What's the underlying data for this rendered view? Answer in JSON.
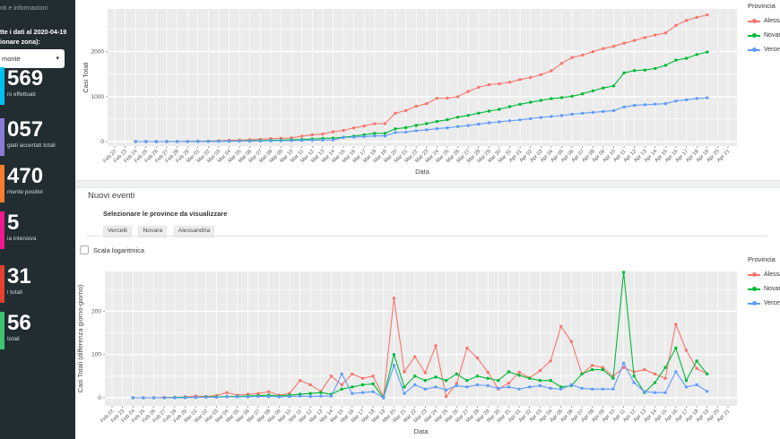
{
  "sidebar": {
    "info_link": "nti e informazioni",
    "data_note": "tte i dati al 2020-04-19",
    "zone_label": "ionare zona):",
    "zone_select_value": "monte",
    "stats": [
      {
        "value": "569",
        "label": "ni effettuati",
        "color": "#00c0ef"
      },
      {
        "value": "057",
        "label": "giati accertati totali",
        "color": "#8a7bd8"
      },
      {
        "value": "470",
        "label": "mente positivi",
        "color": "#ff7e2e"
      },
      {
        "value": "5",
        "label": "ia intensiva",
        "color": "#ef188f"
      },
      {
        "value": "31",
        "label": "i totali",
        "color": "#e8402f"
      },
      {
        "value": "56",
        "label": "totali",
        "color": "#3fc46f"
      }
    ]
  },
  "sections": {
    "nuovi_eventi_title": "Nuovi eventi",
    "province_select_label": "Selezionare le province da visualizzare",
    "province_chips": [
      "Vercelli",
      "Novara",
      "Alessandria"
    ],
    "log_scale_label": "Scala logaritmica"
  },
  "chart_data": [
    {
      "type": "line",
      "title": "",
      "xlabel": "Data",
      "ylabel": "Casi Totali",
      "legend_title": "Provincia",
      "legend_position": "right",
      "grid": true,
      "yticks": [
        0,
        1000,
        2000
      ],
      "ylim": [
        -100,
        2945
      ],
      "x": [
        "Feb 22",
        "Feb 23",
        "Feb 24",
        "Feb 25",
        "Feb 26",
        "Feb 27",
        "Feb 28",
        "Feb 29",
        "Mar 01",
        "Mar 02",
        "Mar 03",
        "Mar 04",
        "Mar 05",
        "Mar 06",
        "Mar 07",
        "Mar 08",
        "Mar 09",
        "Mar 10",
        "Mar 11",
        "Mar 12",
        "Mar 13",
        "Mar 14",
        "Mar 15",
        "Mar 16",
        "Mar 17",
        "Mar 18",
        "Mar 19",
        "Mar 20",
        "Mar 21",
        "Mar 22",
        "Mar 23",
        "Mar 24",
        "Mar 25",
        "Mar 26",
        "Mar 27",
        "Mar 28",
        "Mar 29",
        "Mar 30",
        "Mar 31",
        "Apr 01",
        "Apr 02",
        "Apr 03",
        "Apr 04",
        "Apr 05",
        "Apr 06",
        "Apr 07",
        "Apr 08",
        "Apr 09",
        "Apr 10",
        "Apr 11",
        "Apr 12",
        "Apr 13",
        "Apr 14",
        "Apr 15",
        "Apr 16",
        "Apr 17",
        "Apr 18",
        "Apr 19",
        "Apr 20",
        "Apr 21"
      ],
      "data_start_index": 2,
      "series": [
        {
          "name": "Alessandria",
          "color": "#F8766D",
          "values": [
            0,
            0,
            0,
            1,
            2,
            4,
            8,
            11,
            16,
            28,
            34,
            42,
            52,
            66,
            72,
            82,
            122,
            152,
            167,
            217,
            247,
            302,
            347,
            397,
            399,
            629,
            689,
            784,
            842,
            962,
            965,
            998,
            1113,
            1205,
            1264,
            1284,
            1318,
            1377,
            1423,
            1486,
            1571,
            1736,
            1866,
            1921,
            1996,
            2066,
            2116,
            2186,
            2246,
            2311,
            2366,
            2411,
            2581,
            2691,
            2759,
            2814
          ]
        },
        {
          "name": "Novara",
          "color": "#00BA38",
          "values": [
            0,
            0,
            0,
            0,
            1,
            2,
            3,
            5,
            7,
            10,
            13,
            17,
            22,
            28,
            32,
            38,
            46,
            56,
            68,
            76,
            96,
            121,
            151,
            183,
            183,
            283,
            308,
            358,
            398,
            446,
            486,
            541,
            581,
            631,
            676,
            716,
            776,
            828,
            873,
            913,
            953,
            978,
            1006,
            1061,
            1126,
            1191,
            1236,
            1526,
            1576,
            1588,
            1623,
            1693,
            1808,
            1848,
            1933,
            1988
          ]
        },
        {
          "name": "Vercelli",
          "color": "#619CFF",
          "values": [
            0,
            0,
            0,
            0,
            0,
            0,
            1,
            2,
            3,
            5,
            7,
            9,
            12,
            15,
            17,
            20,
            24,
            27,
            31,
            35,
            90,
            100,
            112,
            126,
            126,
            201,
            211,
            241,
            261,
            286,
            304,
            332,
            357,
            387,
            415,
            437,
            462,
            482,
            507,
            535,
            557,
            577,
            607,
            629,
            649,
            669,
            689,
            769,
            804,
            818,
            830,
            842,
            902,
            927,
            957,
            972
          ]
        }
      ]
    },
    {
      "type": "line",
      "title": "",
      "xlabel": "Data",
      "ylabel": "Casi Totali (differenza giorno-giorno)",
      "legend_title": "Provincia",
      "legend_position": "right",
      "grid": true,
      "yticks": [
        0,
        100,
        200
      ],
      "ylim": [
        -19,
        292
      ],
      "x": [
        "Feb 22",
        "Feb 23",
        "Feb 24",
        "Feb 25",
        "Feb 26",
        "Feb 27",
        "Feb 28",
        "Feb 29",
        "Mar 01",
        "Mar 02",
        "Mar 03",
        "Mar 04",
        "Mar 05",
        "Mar 06",
        "Mar 07",
        "Mar 08",
        "Mar 09",
        "Mar 10",
        "Mar 11",
        "Mar 12",
        "Mar 13",
        "Mar 14",
        "Mar 15",
        "Mar 16",
        "Mar 17",
        "Mar 18",
        "Mar 19",
        "Mar 20",
        "Mar 21",
        "Mar 22",
        "Mar 23",
        "Mar 24",
        "Mar 25",
        "Mar 26",
        "Mar 27",
        "Mar 28",
        "Mar 29",
        "Mar 30",
        "Mar 31",
        "Apr 01",
        "Apr 02",
        "Apr 03",
        "Apr 04",
        "Apr 05",
        "Apr 06",
        "Apr 07",
        "Apr 08",
        "Apr 09",
        "Apr 10",
        "Apr 11",
        "Apr 12",
        "Apr 13",
        "Apr 14",
        "Apr 15",
        "Apr 16",
        "Apr 17",
        "Apr 18",
        "Apr 19",
        "Apr 20",
        "Apr 21"
      ],
      "data_start_index": 2,
      "series": [
        {
          "name": "Alessandria",
          "color": "#F8766D",
          "values": [
            0,
            0,
            0,
            1,
            1,
            2,
            4,
            3,
            5,
            12,
            6,
            8,
            10,
            14,
            6,
            10,
            40,
            30,
            15,
            50,
            30,
            55,
            45,
            50,
            2,
            230,
            60,
            95,
            58,
            120,
            3,
            33,
            115,
            92,
            59,
            20,
            34,
            59,
            46,
            63,
            85,
            165,
            130,
            55,
            75,
            70,
            50,
            70,
            60,
            65,
            55,
            45,
            170,
            110,
            68,
            55
          ]
        },
        {
          "name": "Novara",
          "color": "#00BA38",
          "values": [
            0,
            0,
            0,
            0,
            1,
            1,
            1,
            2,
            2,
            3,
            3,
            4,
            5,
            6,
            4,
            6,
            8,
            10,
            12,
            8,
            20,
            25,
            30,
            32,
            0,
            100,
            25,
            50,
            40,
            48,
            40,
            55,
            40,
            50,
            45,
            40,
            60,
            52,
            45,
            40,
            40,
            25,
            28,
            55,
            65,
            65,
            45,
            290,
            50,
            12,
            35,
            70,
            115,
            40,
            85,
            55
          ]
        },
        {
          "name": "Vercelli",
          "color": "#619CFF",
          "values": [
            0,
            0,
            0,
            0,
            0,
            0,
            1,
            1,
            1,
            2,
            2,
            2,
            3,
            3,
            2,
            3,
            4,
            3,
            4,
            4,
            55,
            10,
            12,
            14,
            0,
            75,
            10,
            30,
            20,
            25,
            18,
            28,
            25,
            30,
            28,
            22,
            25,
            20,
            25,
            28,
            22,
            20,
            30,
            22,
            20,
            20,
            20,
            80,
            35,
            14,
            12,
            12,
            60,
            25,
            30,
            15
          ]
        }
      ]
    }
  ]
}
